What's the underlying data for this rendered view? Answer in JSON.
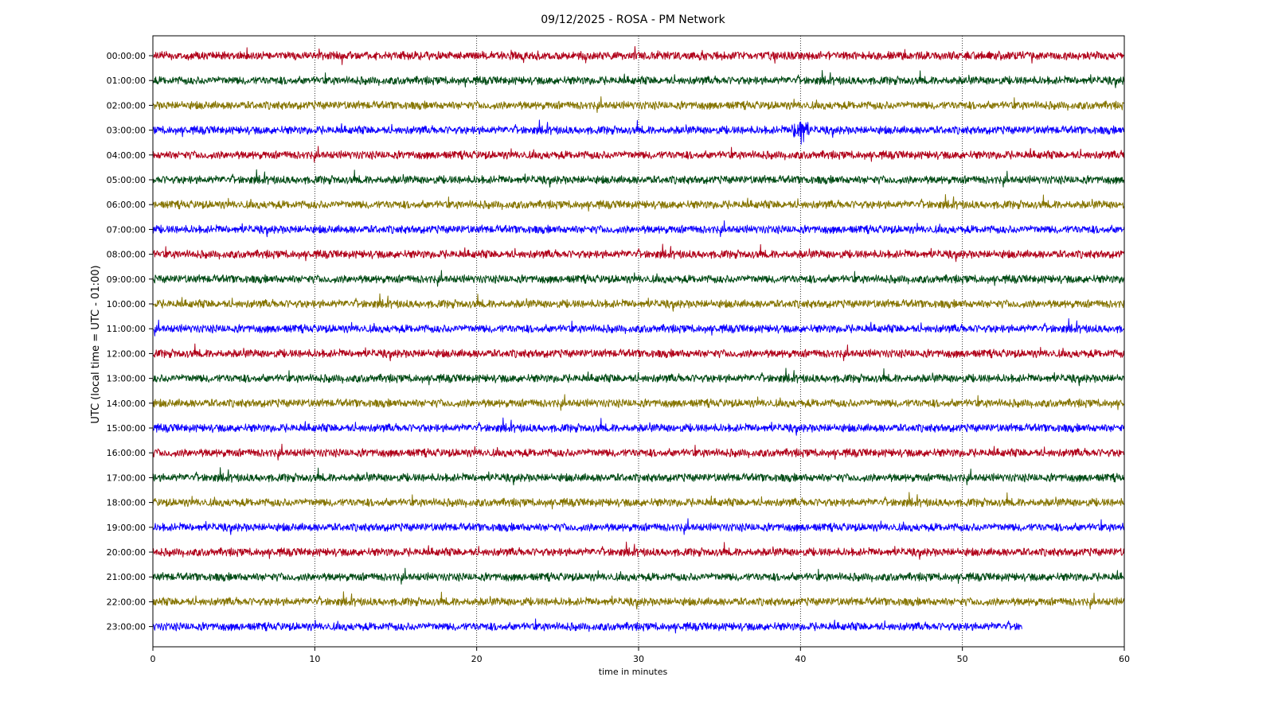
{
  "chart_data": {
    "type": "line",
    "title": "09/12/2025 - ROSA - PM Network",
    "xlabel": "time in minutes",
    "ylabel": "UTC (local time = UTC - 01:00)",
    "xlim": [
      0,
      60
    ],
    "x_ticks": [
      0,
      10,
      20,
      30,
      40,
      50,
      60
    ],
    "x_tick_labels": [
      "0",
      "10",
      "20",
      "30",
      "40",
      "50",
      "60"
    ],
    "grid": "vertical dotted",
    "legend": "none",
    "colors": [
      "#b00019",
      "#004a14",
      "#857400",
      "#0d00ff"
    ],
    "series": [
      {
        "label": "00:00:00",
        "end_minute": 60
      },
      {
        "label": "01:00:00",
        "end_minute": 60
      },
      {
        "label": "02:00:00",
        "end_minute": 60
      },
      {
        "label": "03:00:00",
        "end_minute": 60,
        "event_minute": 40
      },
      {
        "label": "04:00:00",
        "end_minute": 60
      },
      {
        "label": "05:00:00",
        "end_minute": 60
      },
      {
        "label": "06:00:00",
        "end_minute": 60
      },
      {
        "label": "07:00:00",
        "end_minute": 60
      },
      {
        "label": "08:00:00",
        "end_minute": 60
      },
      {
        "label": "09:00:00",
        "end_minute": 60
      },
      {
        "label": "10:00:00",
        "end_minute": 60
      },
      {
        "label": "11:00:00",
        "end_minute": 60
      },
      {
        "label": "12:00:00",
        "end_minute": 60
      },
      {
        "label": "13:00:00",
        "end_minute": 60
      },
      {
        "label": "14:00:00",
        "end_minute": 60
      },
      {
        "label": "15:00:00",
        "end_minute": 60
      },
      {
        "label": "16:00:00",
        "end_minute": 60
      },
      {
        "label": "17:00:00",
        "end_minute": 60
      },
      {
        "label": "18:00:00",
        "end_minute": 60
      },
      {
        "label": "19:00:00",
        "end_minute": 60
      },
      {
        "label": "20:00:00",
        "end_minute": 60
      },
      {
        "label": "21:00:00",
        "end_minute": 60
      },
      {
        "label": "22:00:00",
        "end_minute": 60
      },
      {
        "label": "23:00:00",
        "end_minute": 53.7
      }
    ]
  }
}
